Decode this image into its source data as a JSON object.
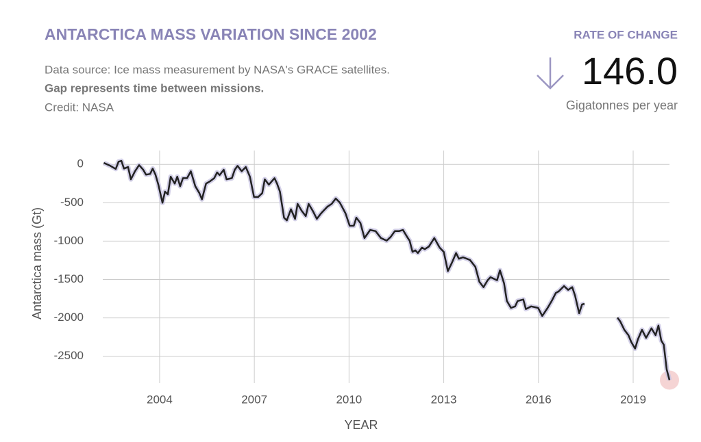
{
  "header": {
    "title": "ANTARCTICA MASS VARIATION SINCE 2002",
    "source": "Data source: Ice mass measurement by NASA's GRACE satellites.",
    "note": "Gap represents time between missions.",
    "credit": "Credit: NASA",
    "rate_label": "RATE OF CHANGE",
    "rate_value": "146.0",
    "rate_unit": "Gigatonnes per year"
  },
  "chart_data": {
    "type": "line",
    "x_label": "YEAR",
    "y_label": "Antarctica mass (Gt)",
    "xlim": [
      2002.2,
      2020.15
    ],
    "ylim": [
      -2850,
      180
    ],
    "xticks": [
      2004,
      2007,
      2010,
      2013,
      2016,
      2019
    ],
    "yticks": [
      0,
      -500,
      -1000,
      -1500,
      -2000,
      -2500
    ],
    "grid": true,
    "band_color": "#c9c5e2",
    "highlight_color": "#f3c9c9",
    "series": [
      {
        "color": "#222222",
        "x": [
          2002.23,
          2002.44,
          2002.61,
          2002.7,
          2002.79,
          2002.87,
          2003.0,
          2003.09,
          2003.22,
          2003.35,
          2003.48,
          2003.57,
          2003.7,
          2003.78,
          2003.87,
          2003.96,
          2004.09,
          2004.17,
          2004.26,
          2004.35,
          2004.48,
          2004.56,
          2004.65,
          2004.74,
          2004.87,
          2004.99,
          2005.13,
          2005.26,
          2005.34,
          2005.47,
          2005.6,
          2005.73,
          2005.82,
          2005.9,
          2006.03,
          2006.12,
          2006.29,
          2006.38,
          2006.47,
          2006.6,
          2006.73,
          2006.86,
          2006.99,
          2007.12,
          2007.25,
          2007.33,
          2007.46,
          2007.64,
          2007.72,
          2007.81,
          2007.94,
          2008.03,
          2008.16,
          2008.29,
          2008.37,
          2008.5,
          2008.63,
          2008.72,
          2008.85,
          2008.98,
          2009.11,
          2009.19,
          2009.32,
          2009.45,
          2009.58,
          2009.71,
          2009.8,
          2009.89,
          2010.02,
          2010.15,
          2010.23,
          2010.36,
          2010.49,
          2010.67,
          2010.84,
          2011.01,
          2011.19,
          2011.32,
          2011.45,
          2011.58,
          2011.71,
          2011.84,
          2011.92,
          2012.01,
          2012.1,
          2012.18,
          2012.31,
          2012.4,
          2012.53,
          2012.7,
          2012.87,
          2013.0,
          2013.13,
          2013.26,
          2013.39,
          2013.48,
          2013.61,
          2013.83,
          2014.0,
          2014.13,
          2014.26,
          2014.39,
          2014.48,
          2014.69,
          2014.78,
          2014.91,
          2015.0,
          2015.13,
          2015.26,
          2015.34,
          2015.52,
          2015.6,
          2015.77,
          2015.99,
          2016.12,
          2016.29,
          2016.42,
          2016.55,
          2016.64,
          2016.81,
          2016.94,
          2017.07,
          2017.16,
          2017.29,
          2017.38,
          2017.46,
          2017.95,
          2018.5,
          2018.59,
          2018.72,
          2018.85,
          2018.94,
          2019.06,
          2019.15,
          2019.28,
          2019.41,
          2019.58,
          2019.71,
          2019.8,
          2019.89,
          2019.97,
          2020.06,
          2020.15
        ],
        "values": [
          20,
          -20,
          -60,
          35,
          45,
          -55,
          -35,
          -195,
          -90,
          -10,
          -70,
          -135,
          -125,
          -55,
          -135,
          -265,
          -500,
          -355,
          -390,
          -160,
          -250,
          -160,
          -285,
          -180,
          -180,
          -90,
          -285,
          -375,
          -455,
          -250,
          -220,
          -180,
          -105,
          -140,
          -70,
          -195,
          -180,
          -70,
          -20,
          -90,
          -35,
          -160,
          -425,
          -425,
          -375,
          -195,
          -265,
          -180,
          -250,
          -355,
          -695,
          -730,
          -585,
          -710,
          -515,
          -605,
          -675,
          -515,
          -605,
          -710,
          -640,
          -605,
          -550,
          -515,
          -445,
          -500,
          -570,
          -640,
          -800,
          -800,
          -695,
          -765,
          -960,
          -855,
          -870,
          -960,
          -995,
          -945,
          -870,
          -870,
          -855,
          -945,
          -995,
          -1140,
          -1120,
          -1155,
          -1085,
          -1105,
          -1070,
          -960,
          -1085,
          -1140,
          -1390,
          -1280,
          -1155,
          -1230,
          -1210,
          -1245,
          -1335,
          -1530,
          -1600,
          -1510,
          -1470,
          -1510,
          -1380,
          -1550,
          -1780,
          -1870,
          -1850,
          -1780,
          -1760,
          -1885,
          -1850,
          -1870,
          -1975,
          -1870,
          -1780,
          -1675,
          -1655,
          -1585,
          -1635,
          -1600,
          -1710,
          -1940,
          -1825,
          -1815,
          null,
          -1995,
          -2045,
          -2155,
          -2225,
          -2315,
          -2400,
          -2280,
          -2155,
          -2260,
          -2135,
          -2225,
          -2100,
          -2295,
          -2350,
          -2670,
          -2810
        ]
      }
    ]
  }
}
